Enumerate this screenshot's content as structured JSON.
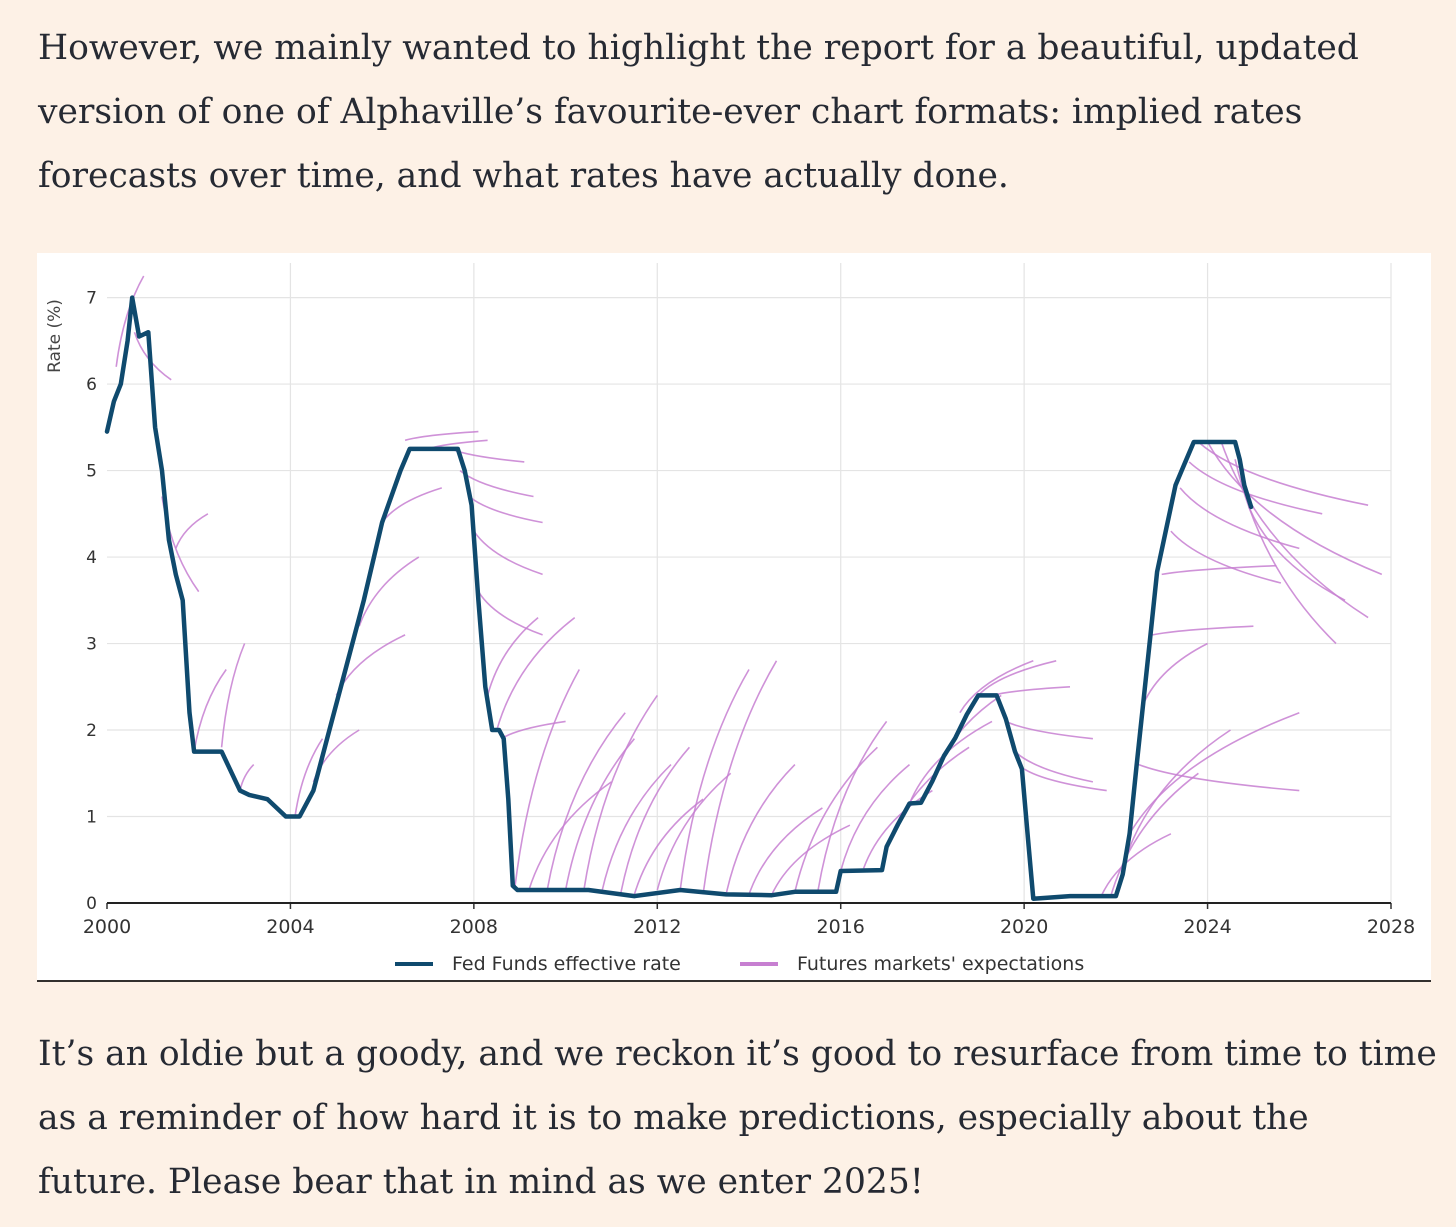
{
  "article": {
    "para1": "However, we mainly wanted to highlight the report for a beautiful, updated version of one of Alphaville’s favourite-ever chart formats: implied rates forecasts over time, and what rates have actually done.",
    "para2": "It’s an oldie but a goody, and we reckon it’s good to resurface from time to time as a reminder of how hard it is to make predictions, especially about the future. Please bear that in mind as we enter 2025!"
  },
  "chart_data": {
    "type": "line",
    "title": "",
    "xlabel": "",
    "ylabel": "Rate (%)",
    "xlim": [
      2000,
      2028
    ],
    "ylim": [
      0,
      7.4
    ],
    "x_ticks": [
      "2000",
      "2004",
      "2008",
      "2012",
      "2016",
      "2020",
      "2024",
      "2028"
    ],
    "y_ticks": [
      "0",
      "1",
      "2",
      "3",
      "4",
      "5",
      "6",
      "7"
    ],
    "grid": true,
    "legend": "bottom-center",
    "colors": {
      "actual": "#0f4a6e",
      "expectations": "#c77fd1"
    },
    "series": [
      {
        "name": "Fed Funds effective rate",
        "x": [
          2000.0,
          2000.15,
          2000.3,
          2000.45,
          2000.55,
          2000.7,
          2000.9,
          2001.05,
          2001.2,
          2001.35,
          2001.5,
          2001.65,
          2001.8,
          2001.9,
          2002.0,
          2002.5,
          2002.9,
          2003.1,
          2003.5,
          2003.9,
          2004.2,
          2004.5,
          2004.8,
          2005.2,
          2005.6,
          2006.0,
          2006.4,
          2006.6,
          2007.0,
          2007.4,
          2007.65,
          2007.8,
          2007.95,
          2008.1,
          2008.25,
          2008.4,
          2008.55,
          2008.65,
          2008.75,
          2008.85,
          2008.95,
          2009.5,
          2010.5,
          2011.5,
          2012.5,
          2013.5,
          2014.5,
          2015.0,
          2015.9,
          2016.0,
          2016.9,
          2017.0,
          2017.25,
          2017.5,
          2017.75,
          2018.0,
          2018.25,
          2018.5,
          2018.75,
          2019.0,
          2019.4,
          2019.6,
          2019.8,
          2019.95,
          2020.1,
          2020.2,
          2021.0,
          2022.0,
          2022.15,
          2022.3,
          2022.45,
          2022.6,
          2022.75,
          2022.9,
          2023.1,
          2023.3,
          2023.5,
          2023.7,
          2024.0,
          2024.2,
          2024.6,
          2024.7,
          2024.8,
          2024.95
        ],
        "values": [
          5.45,
          5.8,
          6.0,
          6.5,
          7.0,
          6.55,
          6.6,
          5.5,
          5.0,
          4.2,
          3.8,
          3.5,
          2.2,
          1.75,
          1.75,
          1.75,
          1.3,
          1.25,
          1.2,
          1.0,
          1.0,
          1.3,
          1.9,
          2.7,
          3.5,
          4.4,
          5.0,
          5.25,
          5.25,
          5.25,
          5.25,
          5.0,
          4.6,
          3.5,
          2.5,
          2.0,
          2.0,
          1.9,
          1.2,
          0.2,
          0.15,
          0.15,
          0.15,
          0.08,
          0.15,
          0.1,
          0.09,
          0.13,
          0.13,
          0.37,
          0.38,
          0.65,
          0.91,
          1.15,
          1.16,
          1.41,
          1.7,
          1.91,
          2.18,
          2.4,
          2.4,
          2.13,
          1.75,
          1.55,
          0.65,
          0.05,
          0.08,
          0.08,
          0.33,
          0.8,
          1.58,
          2.33,
          3.08,
          3.83,
          4.33,
          4.83,
          5.08,
          5.33,
          5.33,
          5.33,
          5.33,
          5.13,
          4.83,
          4.58
        ]
      },
      {
        "name": "Futures markets' expectations",
        "curves": [
          {
            "x": [
              2000.2,
              2000.8
            ],
            "values": [
              6.2,
              7.25
            ]
          },
          {
            "x": [
              2000.6,
              2001.4
            ],
            "values": [
              6.6,
              6.05
            ]
          },
          {
            "x": [
              2001.2,
              2002.0
            ],
            "values": [
              4.7,
              3.6
            ]
          },
          {
            "x": [
              2001.5,
              2002.2
            ],
            "values": [
              4.1,
              4.5
            ]
          },
          {
            "x": [
              2001.9,
              2002.6
            ],
            "values": [
              1.75,
              2.7
            ]
          },
          {
            "x": [
              2002.5,
              2003.0
            ],
            "values": [
              1.8,
              3.0
            ]
          },
          {
            "x": [
              2002.9,
              2003.2
            ],
            "values": [
              1.3,
              1.6
            ]
          },
          {
            "x": [
              2004.1,
              2004.7
            ],
            "values": [
              1.0,
              1.9
            ]
          },
          {
            "x": [
              2004.5,
              2005.5
            ],
            "values": [
              1.4,
              2.0
            ]
          },
          {
            "x": [
              2005.0,
              2006.5
            ],
            "values": [
              2.4,
              3.1
            ]
          },
          {
            "x": [
              2005.5,
              2006.8
            ],
            "values": [
              3.2,
              4.0
            ]
          },
          {
            "x": [
              2006.0,
              2007.3
            ],
            "values": [
              4.4,
              4.8
            ]
          },
          {
            "x": [
              2006.5,
              2008.1
            ],
            "values": [
              5.35,
              5.45
            ]
          },
          {
            "x": [
              2007.0,
              2008.3
            ],
            "values": [
              5.25,
              5.35
            ]
          },
          {
            "x": [
              2007.5,
              2009.1
            ],
            "values": [
              5.25,
              5.1
            ]
          },
          {
            "x": [
              2007.7,
              2009.3
            ],
            "values": [
              5.0,
              4.7
            ]
          },
          {
            "x": [
              2007.9,
              2009.5
            ],
            "values": [
              4.7,
              4.4
            ]
          },
          {
            "x": [
              2008.0,
              2009.5
            ],
            "values": [
              4.3,
              3.8
            ]
          },
          {
            "x": [
              2008.1,
              2009.5
            ],
            "values": [
              3.6,
              3.1
            ]
          },
          {
            "x": [
              2008.3,
              2009.4
            ],
            "values": [
              2.4,
              3.3
            ]
          },
          {
            "x": [
              2008.5,
              2010.2
            ],
            "values": [
              2.0,
              3.3
            ]
          },
          {
            "x": [
              2008.6,
              2010.0
            ],
            "values": [
              1.9,
              2.1
            ]
          },
          {
            "x": [
              2008.9,
              2010.3
            ],
            "values": [
              0.2,
              2.7
            ]
          },
          {
            "x": [
              2009.2,
              2011.0
            ],
            "values": [
              0.15,
              1.4
            ]
          },
          {
            "x": [
              2009.6,
              2011.3
            ],
            "values": [
              0.15,
              2.2
            ]
          },
          {
            "x": [
              2010.0,
              2011.5
            ],
            "values": [
              0.15,
              1.9
            ]
          },
          {
            "x": [
              2010.4,
              2012.0
            ],
            "values": [
              0.15,
              2.4
            ]
          },
          {
            "x": [
              2010.8,
              2012.3
            ],
            "values": [
              0.15,
              1.6
            ]
          },
          {
            "x": [
              2011.2,
              2012.7
            ],
            "values": [
              0.1,
              1.8
            ]
          },
          {
            "x": [
              2011.5,
              2013.0
            ],
            "values": [
              0.1,
              1.2
            ]
          },
          {
            "x": [
              2012.0,
              2013.6
            ],
            "values": [
              0.15,
              1.5
            ]
          },
          {
            "x": [
              2012.5,
              2014.0
            ],
            "values": [
              0.15,
              2.7
            ]
          },
          {
            "x": [
              2013.0,
              2014.6
            ],
            "values": [
              0.1,
              2.8
            ]
          },
          {
            "x": [
              2013.5,
              2015.0
            ],
            "values": [
              0.1,
              1.6
            ]
          },
          {
            "x": [
              2014.0,
              2015.6
            ],
            "values": [
              0.1,
              1.1
            ]
          },
          {
            "x": [
              2014.5,
              2016.2
            ],
            "values": [
              0.1,
              0.9
            ]
          },
          {
            "x": [
              2015.0,
              2016.8
            ],
            "values": [
              0.13,
              1.8
            ]
          },
          {
            "x": [
              2015.5,
              2017.0
            ],
            "values": [
              0.13,
              2.1
            ]
          },
          {
            "x": [
              2016.0,
              2017.5
            ],
            "values": [
              0.37,
              1.6
            ]
          },
          {
            "x": [
              2016.5,
              2018.0
            ],
            "values": [
              0.4,
              1.3
            ]
          },
          {
            "x": [
              2017.0,
              2018.8
            ],
            "values": [
              0.65,
              1.8
            ]
          },
          {
            "x": [
              2017.5,
              2019.3
            ],
            "values": [
              1.15,
              2.1
            ]
          },
          {
            "x": [
              2018.0,
              2019.5
            ],
            "values": [
              1.41,
              2.4
            ]
          },
          {
            "x": [
              2018.6,
              2020.2
            ],
            "values": [
              2.2,
              2.8
            ]
          },
          {
            "x": [
              2019.0,
              2020.7
            ],
            "values": [
              2.4,
              2.8
            ]
          },
          {
            "x": [
              2019.3,
              2021.0
            ],
            "values": [
              2.4,
              2.5
            ]
          },
          {
            "x": [
              2019.6,
              2021.5
            ],
            "values": [
              2.1,
              1.9
            ]
          },
          {
            "x": [
              2019.8,
              2021.5
            ],
            "values": [
              1.75,
              1.4
            ]
          },
          {
            "x": [
              2020.0,
              2021.8
            ],
            "values": [
              1.55,
              1.3
            ]
          },
          {
            "x": [
              2021.7,
              2023.2
            ],
            "values": [
              0.1,
              0.8
            ]
          },
          {
            "x": [
              2021.9,
              2023.8
            ],
            "values": [
              0.1,
              1.5
            ]
          },
          {
            "x": [
              2022.2,
              2024.5
            ],
            "values": [
              0.5,
              2.0
            ]
          },
          {
            "x": [
              2022.3,
              2026.0
            ],
            "values": [
              0.8,
              2.2
            ]
          },
          {
            "x": [
              2022.5,
              2026.0
            ],
            "values": [
              1.6,
              1.3
            ]
          },
          {
            "x": [
              2022.6,
              2024.0
            ],
            "values": [
              2.3,
              3.0
            ]
          },
          {
            "x": [
              2022.8,
              2025.0
            ],
            "values": [
              3.1,
              3.2
            ]
          },
          {
            "x": [
              2023.0,
              2025.5
            ],
            "values": [
              3.8,
              3.9
            ]
          },
          {
            "x": [
              2023.2,
              2025.6
            ],
            "values": [
              4.3,
              3.7
            ]
          },
          {
            "x": [
              2023.4,
              2026.0
            ],
            "values": [
              4.8,
              4.1
            ]
          },
          {
            "x": [
              2023.6,
              2026.5
            ],
            "values": [
              5.1,
              4.5
            ]
          },
          {
            "x": [
              2023.8,
              2027.5
            ],
            "values": [
              5.33,
              4.6
            ]
          },
          {
            "x": [
              2024.0,
              2027.8
            ],
            "values": [
              5.33,
              3.8
            ]
          },
          {
            "x": [
              2024.3,
              2027.5
            ],
            "values": [
              5.33,
              3.3
            ]
          },
          {
            "x": [
              2024.6,
              2026.8
            ],
            "values": [
              5.13,
              3.0
            ]
          },
          {
            "x": [
              2024.9,
              2027.0
            ],
            "values": [
              4.58,
              3.5
            ]
          }
        ]
      }
    ]
  }
}
